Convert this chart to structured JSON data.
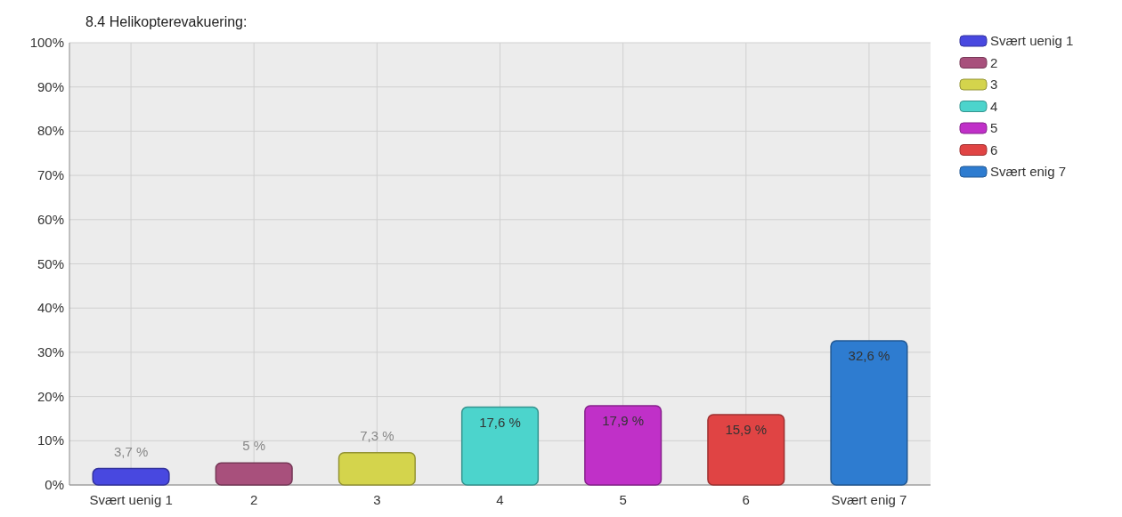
{
  "chart_data": {
    "type": "bar",
    "title": "8.4 Helikopterevakuering:",
    "categories": [
      "Svært uenig 1",
      "2",
      "3",
      "4",
      "5",
      "6",
      "Svært enig 7"
    ],
    "series": [
      {
        "name": "Svært uenig 1",
        "color": "#4848e0",
        "values": [
          3.7,
          null,
          null,
          null,
          null,
          null,
          null
        ],
        "value_labels": [
          "3,7 %",
          null,
          null,
          null,
          null,
          null,
          null
        ]
      },
      {
        "name": "2",
        "color": "#a8507c",
        "values": [
          null,
          5,
          null,
          null,
          null,
          null,
          null
        ],
        "value_labels": [
          null,
          "5 %",
          null,
          null,
          null,
          null,
          null
        ]
      },
      {
        "name": "3",
        "color": "#d4d44c",
        "values": [
          null,
          null,
          7.3,
          null,
          null,
          null,
          null
        ],
        "value_labels": [
          null,
          null,
          "7,3 %",
          null,
          null,
          null,
          null
        ]
      },
      {
        "name": "4",
        "color": "#4cd4cc",
        "values": [
          null,
          null,
          null,
          17.6,
          null,
          null,
          null
        ],
        "value_labels": [
          null,
          null,
          null,
          "17,6 %",
          null,
          null,
          null
        ]
      },
      {
        "name": "5",
        "color": "#c030c8",
        "values": [
          null,
          null,
          null,
          null,
          17.9,
          null,
          null
        ],
        "value_labels": [
          null,
          null,
          null,
          null,
          "17,9 %",
          null,
          null
        ]
      },
      {
        "name": "6",
        "color": "#e04444",
        "values": [
          null,
          null,
          null,
          null,
          null,
          15.9,
          null
        ],
        "value_labels": [
          null,
          null,
          null,
          null,
          null,
          "15,9 %",
          null
        ]
      },
      {
        "name": "Svært enig 7",
        "color": "#2e7cd0",
        "values": [
          null,
          null,
          null,
          null,
          null,
          null,
          32.6
        ],
        "value_labels": [
          null,
          null,
          null,
          null,
          null,
          null,
          "32,6 %"
        ]
      }
    ],
    "ylim": [
      0,
      100
    ],
    "yticks": [
      {
        "value": 0,
        "label": "0%"
      },
      {
        "value": 10,
        "label": "10%"
      },
      {
        "value": 20,
        "label": "20%"
      },
      {
        "value": 30,
        "label": "30%"
      },
      {
        "value": 40,
        "label": "40%"
      },
      {
        "value": 50,
        "label": "50%"
      },
      {
        "value": 60,
        "label": "60%"
      },
      {
        "value": 70,
        "label": "70%"
      },
      {
        "value": 80,
        "label": "80%"
      },
      {
        "value": 90,
        "label": "90%"
      },
      {
        "value": 100,
        "label": "100%"
      }
    ],
    "grid": true,
    "legend": "right"
  }
}
